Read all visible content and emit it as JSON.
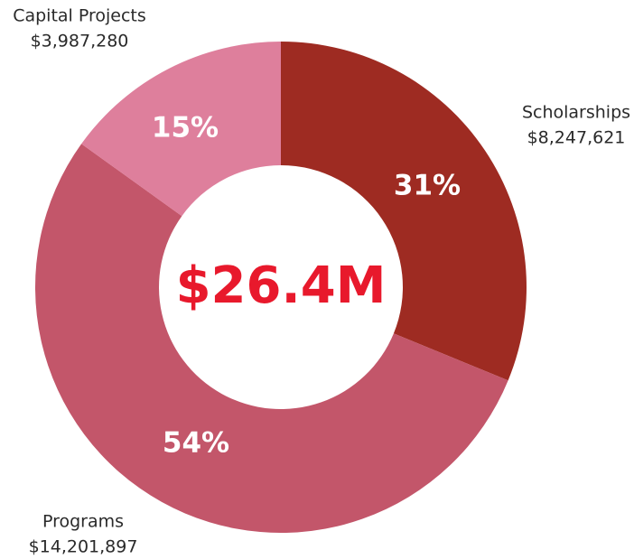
{
  "chart_data": {
    "type": "pie",
    "donut": true,
    "categories": [
      "Scholarships",
      "Programs",
      "Capital Projects"
    ],
    "values": [
      8247621,
      14201897,
      3987280
    ],
    "value_labels": [
      "$8,247,621",
      "$14,201,897",
      "$3,987,280"
    ],
    "shares": [
      31,
      54,
      15
    ],
    "share_labels": [
      "31%",
      "54%",
      "15%"
    ],
    "colors": [
      "#9e2b22",
      "#c3566a",
      "#de7f9c"
    ],
    "total_label": "$26.4M"
  }
}
